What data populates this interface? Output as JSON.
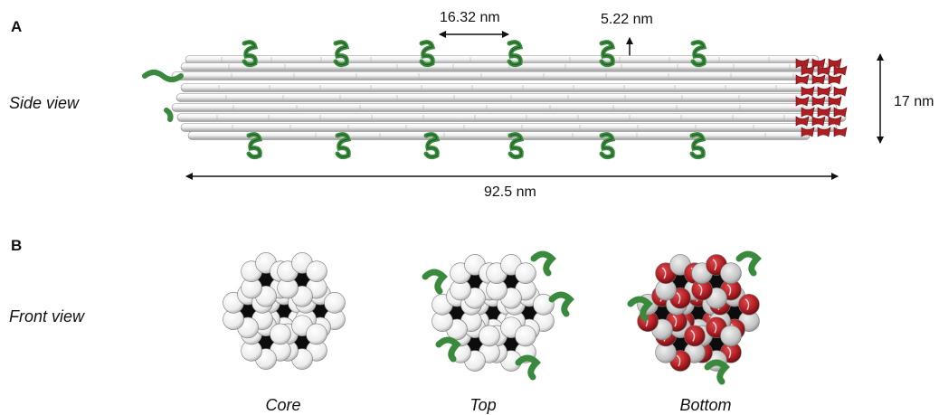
{
  "panels": {
    "a": {
      "letter": "A",
      "view_label": "Side view",
      "dimensions": {
        "spacing": "16.32 nm",
        "height": "5.22 nm",
        "diameter": "17 nm",
        "length": "92.5 nm"
      }
    },
    "b": {
      "letter": "B",
      "view_label": "Front view",
      "captions": [
        "Core",
        "Top",
        "Bottom"
      ]
    }
  },
  "colors": {
    "helix_green": "#3a8a3e",
    "cap_red": "#b01e23",
    "rod_white": "#f4f4f4",
    "core_black": "#0c0c0c",
    "grey": "#bdbdbd"
  }
}
